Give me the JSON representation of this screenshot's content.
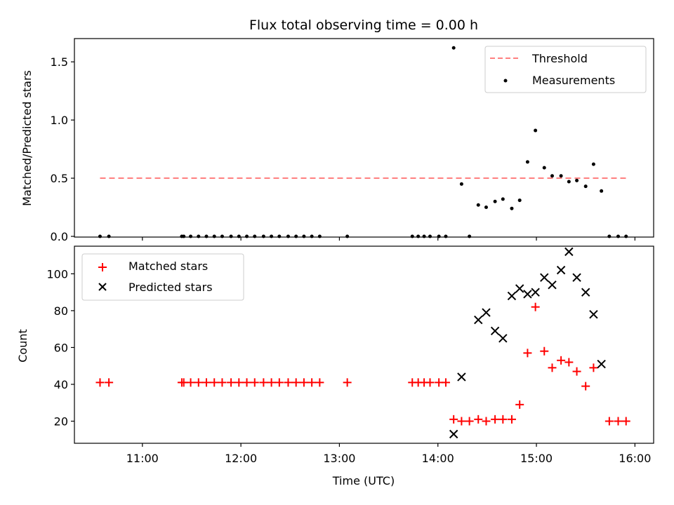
{
  "chart_data": {
    "title": "Flux total observing time = 0.00 h",
    "xlabel": "Time (UTC)",
    "x_ticks": [
      {
        "hour": 11,
        "label": "11:00"
      },
      {
        "hour": 12,
        "label": "12:00"
      },
      {
        "hour": 13,
        "label": "13:00"
      },
      {
        "hour": 14,
        "label": "14:00"
      },
      {
        "hour": 15,
        "label": "15:00"
      },
      {
        "hour": 16,
        "label": "16:00"
      }
    ],
    "xlim": [
      10.31,
      16.19
    ],
    "panels": [
      {
        "name": "ratio",
        "type": "scatter",
        "ylabel": "Matched/Predicted stars",
        "ylim": [
          0,
          1.7
        ],
        "y_ticks": [
          {
            "value": 0.0,
            "label": "0.0"
          },
          {
            "value": 0.5,
            "label": "0.5"
          },
          {
            "value": 1.0,
            "label": "1.0"
          },
          {
            "value": 1.5,
            "label": "1.5"
          }
        ],
        "threshold": {
          "name": "Threshold",
          "value": 0.5,
          "x_range": [
            10.57,
            15.92
          ],
          "color": "#ff8080"
        },
        "legend": [
          "Threshold",
          "Measurements"
        ],
        "series": [
          {
            "name": "Measurements",
            "color": "#000000",
            "x": [
              10.57,
              10.66,
              11.4,
              11.42,
              11.49,
              11.57,
              11.65,
              11.73,
              11.81,
              11.9,
              11.98,
              12.06,
              12.14,
              12.23,
              12.31,
              12.39,
              12.48,
              12.56,
              12.64,
              12.72,
              12.8,
              13.08,
              13.74,
              13.8,
              13.86,
              13.92,
              14.01,
              14.08,
              14.16,
              14.24,
              14.32,
              14.41,
              14.49,
              14.58,
              14.66,
              14.75,
              14.83,
              14.91,
              14.99,
              15.08,
              15.16,
              15.25,
              15.33,
              15.41,
              15.5,
              15.58,
              15.66,
              15.74,
              15.83,
              15.91
            ],
            "y": [
              0,
              0,
              0,
              0,
              0,
              0,
              0,
              0,
              0,
              0,
              0,
              0,
              0,
              0,
              0,
              0,
              0,
              0,
              0,
              0,
              0,
              0,
              0,
              0,
              0,
              0,
              0,
              0,
              1.62,
              0.45,
              0,
              0.27,
              0.25,
              0.3,
              0.32,
              0.24,
              0.31,
              0.64,
              0.91,
              0.59,
              0.52,
              0.52,
              0.47,
              0.48,
              0.43,
              0.62,
              0.39,
              0,
              0,
              0
            ]
          }
        ]
      },
      {
        "name": "counts",
        "type": "scatter",
        "ylabel": "Count",
        "ylim": [
          8,
          115
        ],
        "y_ticks": [
          {
            "value": 20,
            "label": "20"
          },
          {
            "value": 40,
            "label": "40"
          },
          {
            "value": 60,
            "label": "60"
          },
          {
            "value": 80,
            "label": "80"
          },
          {
            "value": 100,
            "label": "100"
          }
        ],
        "legend": [
          "Matched stars",
          "Predicted stars"
        ],
        "series": [
          {
            "name": "Matched stars",
            "marker": "+",
            "color": "#ff0000",
            "x": [
              10.57,
              10.66,
              11.4,
              11.42,
              11.49,
              11.57,
              11.65,
              11.73,
              11.81,
              11.9,
              11.98,
              12.06,
              12.14,
              12.23,
              12.31,
              12.39,
              12.48,
              12.56,
              12.64,
              12.72,
              12.8,
              13.08,
              13.74,
              13.8,
              13.86,
              13.92,
              14.01,
              14.08,
              14.16,
              14.24,
              14.32,
              14.41,
              14.49,
              14.58,
              14.66,
              14.75,
              14.83,
              14.91,
              14.99,
              15.08,
              15.16,
              15.25,
              15.33,
              15.41,
              15.5,
              15.58,
              15.74,
              15.83,
              15.91
            ],
            "y": [
              41,
              41,
              41,
              41,
              41,
              41,
              41,
              41,
              41,
              41,
              41,
              41,
              41,
              41,
              41,
              41,
              41,
              41,
              41,
              41,
              41,
              41,
              41,
              41,
              41,
              41,
              41,
              41,
              21,
              20,
              20,
              21,
              20,
              21,
              21,
              21,
              29,
              57,
              82,
              58,
              49,
              53,
              52,
              47,
              39,
              49,
              20,
              20,
              20
            ]
          },
          {
            "name": "Predicted stars",
            "marker": "x",
            "color": "#000000",
            "x": [
              14.16,
              14.24,
              14.41,
              14.49,
              14.58,
              14.66,
              14.75,
              14.83,
              14.91,
              14.99,
              15.08,
              15.16,
              15.25,
              15.33,
              15.41,
              15.5,
              15.58,
              15.66
            ],
            "y": [
              13,
              44,
              75,
              79,
              69,
              65,
              88,
              92,
              89,
              90,
              98,
              94,
              102,
              112,
              98,
              90,
              78,
              51
            ]
          }
        ]
      }
    ]
  }
}
